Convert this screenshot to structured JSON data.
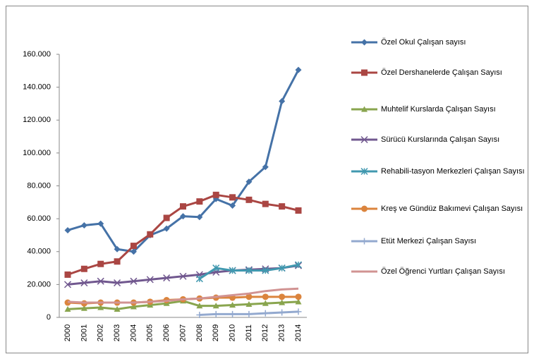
{
  "chart_data": {
    "type": "line",
    "categories": [
      "2000",
      "2001",
      "2002",
      "2003",
      "2004",
      "2005",
      "2006",
      "2007",
      "2008",
      "2009",
      "2010",
      "2011",
      "2012",
      "2013",
      "2014"
    ],
    "ylim": [
      0,
      160000
    ],
    "yticks": [
      0,
      {
        "value": 20000,
        "label": "20.000"
      },
      {
        "value": 40000,
        "label": "40.000"
      },
      {
        "value": 60000,
        "label": "60.000"
      },
      {
        "value": 80000,
        "label": "80.000"
      },
      {
        "value": 100000,
        "label": "100.000"
      },
      {
        "value": 120000,
        "label": "120.000"
      },
      {
        "value": 140000,
        "label": "140.000"
      },
      {
        "value": 160000,
        "label": "160.000"
      }
    ],
    "grid": false,
    "legend": "right",
    "series": [
      {
        "name": "Özel Okul Çalışan sayısı",
        "color": "#4572a7",
        "marker": "diamond",
        "values": [
          53000,
          56000,
          57000,
          41500,
          40000,
          50000,
          54000,
          61500,
          61000,
          72000,
          68000,
          82500,
          91500,
          131500,
          150500
        ]
      },
      {
        "name": "Özel Dershanelerde Çalışan  Sayısı",
        "color": "#aa4643",
        "marker": "square",
        "values": [
          26000,
          29500,
          32500,
          34000,
          43500,
          50500,
          60500,
          67500,
          70500,
          74500,
          73000,
          71500,
          69000,
          67500,
          65000
        ]
      },
      {
        "name": "Muhtelif Kurslarda Çalışan Sayısı",
        "color": "#89a54e",
        "marker": "triangle",
        "values": [
          5000,
          5500,
          6000,
          5000,
          6500,
          7500,
          8500,
          10000,
          7000,
          7000,
          7500,
          8000,
          8500,
          9000,
          9500
        ]
      },
      {
        "name": "Sürücü Kurslarında Çalışan Sayısı",
        "color": "#71588f",
        "marker": "x",
        "values": [
          20000,
          21000,
          22000,
          21000,
          22000,
          23000,
          24000,
          25000,
          26000,
          27500,
          28500,
          29000,
          29500,
          30000,
          31500
        ]
      },
      {
        "name": "Rehabili-tasyon Merkezleri Çalışan Sayısı",
        "color": "#4198af",
        "marker": "star",
        "values": [
          null,
          null,
          null,
          null,
          null,
          null,
          null,
          null,
          23500,
          30000,
          28500,
          28500,
          28500,
          30000,
          32000
        ]
      },
      {
        "name": "Kreş ve Gündüz Bakımevi Çalışan Sayısı",
        "color": "#db843d",
        "marker": "circle",
        "values": [
          9000,
          8500,
          9000,
          9000,
          9000,
          9500,
          10500,
          11000,
          11500,
          12000,
          12000,
          12500,
          12500,
          12500,
          12500
        ]
      },
      {
        "name": "Etüt Merkezi Çalışan Sayısı",
        "color": "#93a9cf",
        "marker": "plus",
        "values": [
          null,
          null,
          null,
          null,
          null,
          null,
          null,
          null,
          1500,
          2000,
          2000,
          2000,
          2500,
          3000,
          3500
        ]
      },
      {
        "name": "Özel Öğrenci Yurtları Çalışan Sayısı",
        "color": "#d19392",
        "marker": "none",
        "values": [
          9500,
          9000,
          9000,
          9000,
          9000,
          9500,
          10000,
          11000,
          11500,
          12500,
          13500,
          14500,
          16000,
          17000,
          17500
        ]
      }
    ]
  }
}
